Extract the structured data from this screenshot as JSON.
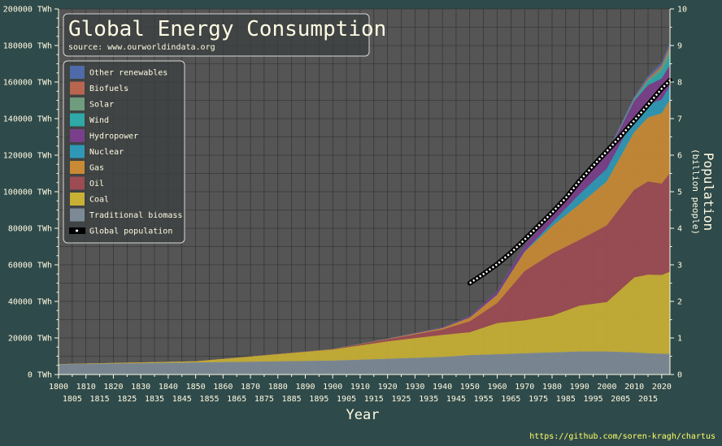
{
  "chart_data": {
    "type": "area",
    "title": "Global Energy Consumption",
    "subtitle": "source: www.ourworldindata.org",
    "xlabel": "Year",
    "ylabel": "",
    "y2label": "Population",
    "y2sublabel": "(billion people)",
    "credit": "https://github.com/soren-kragh/chartus",
    "xlim": [
      1800,
      2023
    ],
    "ylim": [
      0,
      200000
    ],
    "y2lim": [
      0,
      10
    ],
    "grid": true,
    "legend_position": "top-left",
    "x_ticks_top": [
      "1800",
      "1810",
      "1820",
      "1830",
      "1840",
      "1850",
      "1860",
      "1870",
      "1880",
      "1890",
      "1900",
      "1910",
      "1920",
      "1930",
      "1940",
      "1950",
      "1960",
      "1970",
      "1980",
      "1990",
      "2000",
      "2010",
      "2020"
    ],
    "x_ticks_bottom": [
      "1805",
      "1815",
      "1825",
      "1835",
      "1845",
      "1855",
      "1865",
      "1875",
      "1885",
      "1895",
      "1905",
      "1915",
      "1925",
      "1935",
      "1945",
      "1955",
      "1965",
      "1975",
      "1985",
      "1995",
      "2005",
      "2015"
    ],
    "y_ticks": [
      "0 TWh",
      "20000 TWh",
      "40000 TWh",
      "60000 TWh",
      "80000 TWh",
      "100000 TWh",
      "120000 TWh",
      "140000 TWh",
      "160000 TWh",
      "180000 TWh",
      "200000 TWh"
    ],
    "y2_ticks": [
      "0",
      "1",
      "2",
      "3",
      "4",
      "5",
      "6",
      "7",
      "8",
      "9",
      "10"
    ],
    "x": [
      1800,
      1850,
      1900,
      1920,
      1940,
      1950,
      1960,
      1970,
      1980,
      1990,
      2000,
      2010,
      2015,
      2020,
      2023
    ],
    "series": [
      {
        "name": "Traditional biomass",
        "color": "#7c8a96",
        "values": [
          5500,
          6500,
          7500,
          8500,
          9500,
          10500,
          11000,
          11500,
          12000,
          12500,
          12500,
          12000,
          11500,
          11300,
          11100
        ]
      },
      {
        "name": "Coal",
        "color": "#c8b034",
        "values": [
          100,
          600,
          6000,
          9500,
          12000,
          12500,
          17000,
          18000,
          20000,
          25000,
          27000,
          41000,
          43000,
          43000,
          45000
        ]
      },
      {
        "name": "Oil",
        "color": "#9c4c52",
        "values": [
          0,
          0,
          200,
          1200,
          3000,
          6000,
          11000,
          27000,
          34000,
          36000,
          42000,
          48000,
          51000,
          50000,
          54000
        ]
      },
      {
        "name": "Gas",
        "color": "#c88a34",
        "values": [
          0,
          0,
          60,
          200,
          700,
          2000,
          4500,
          10500,
          15000,
          19500,
          24000,
          31500,
          35000,
          38500,
          40000
        ]
      },
      {
        "name": "Nuclear",
        "color": "#2f98b6",
        "values": [
          0,
          0,
          0,
          0,
          0,
          0,
          0,
          200,
          2000,
          5500,
          7000,
          7600,
          7200,
          7500,
          7700
        ]
      },
      {
        "name": "Hydropower",
        "color": "#7a3f8a",
        "values": [
          0,
          0,
          0,
          100,
          500,
          900,
          1900,
          3300,
          4800,
          6200,
          7500,
          9500,
          10500,
          11500,
          11500
        ]
      },
      {
        "name": "Wind",
        "color": "#2fa8a8",
        "values": [
          0,
          0,
          0,
          0,
          0,
          0,
          0,
          0,
          0,
          10,
          80,
          900,
          2200,
          4100,
          5500
        ]
      },
      {
        "name": "Solar",
        "color": "#6f9c7c",
        "values": [
          0,
          0,
          0,
          0,
          0,
          0,
          0,
          0,
          0,
          0,
          5,
          100,
          700,
          2200,
          3700
        ]
      },
      {
        "name": "Biofuels",
        "color": "#b86650",
        "values": [
          0,
          0,
          0,
          0,
          0,
          0,
          0,
          0,
          30,
          120,
          250,
          600,
          900,
          1100,
          1300
        ]
      },
      {
        "name": "Other renewables",
        "color": "#4e6aa8",
        "values": [
          0,
          0,
          0,
          0,
          0,
          0,
          50,
          100,
          200,
          400,
          600,
          900,
          1200,
          1500,
          1700
        ]
      }
    ],
    "population": {
      "name": "Global population",
      "axis": "right",
      "x": [
        1950,
        1955,
        1960,
        1965,
        1970,
        1975,
        1980,
        1985,
        1990,
        1995,
        2000,
        2005,
        2010,
        2015,
        2020,
        2023
      ],
      "values": [
        2.5,
        2.75,
        3.02,
        3.33,
        3.69,
        4.06,
        4.43,
        4.83,
        5.29,
        5.71,
        6.11,
        6.52,
        6.95,
        7.38,
        7.82,
        8.05
      ]
    },
    "legend_order": [
      "Other renewables",
      "Biofuels",
      "Solar",
      "Wind",
      "Hydropower",
      "Nuclear",
      "Gas",
      "Oil",
      "Coal",
      "Traditional biomass",
      "Global population"
    ]
  }
}
